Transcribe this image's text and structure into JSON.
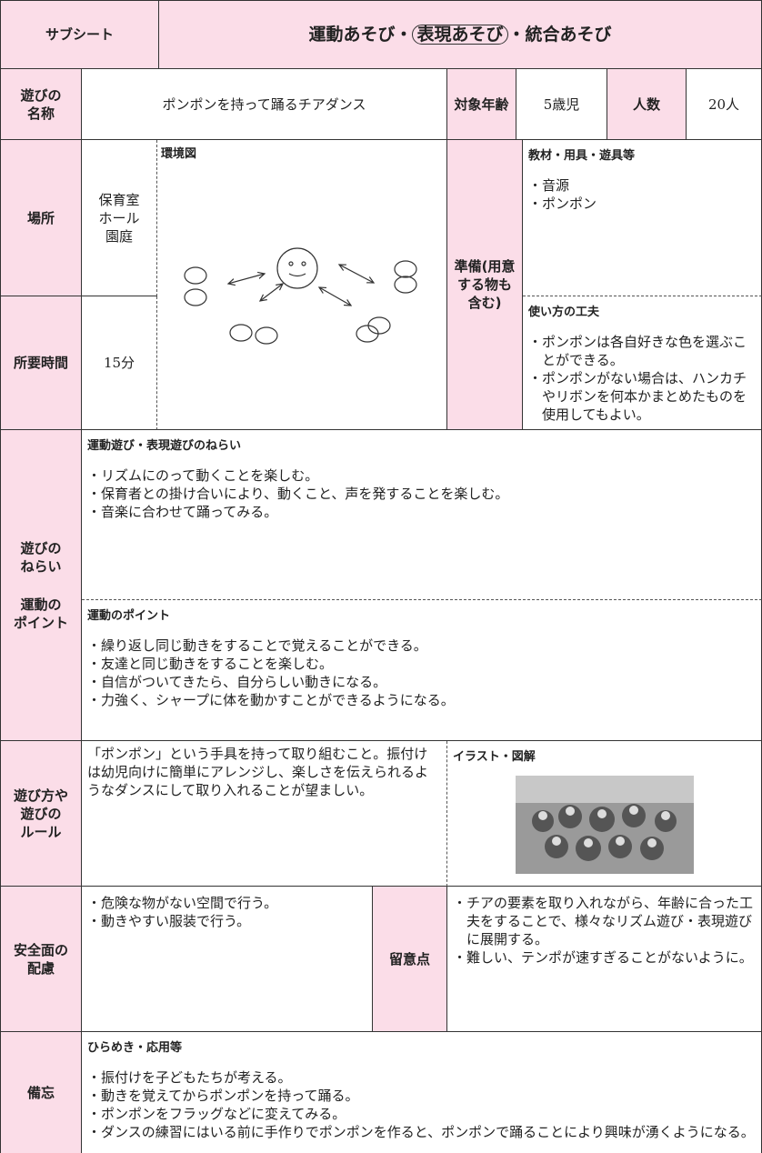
{
  "header": {
    "sheet": "サブシート",
    "title": [
      "運動あそび・",
      "表現あそび",
      "・統合あそび"
    ]
  },
  "name": {
    "label": [
      "遊びの",
      "名称"
    ],
    "value": "ポンポンを持って踊るチアダンス",
    "age_label": "対象年齢",
    "age": "5歳児",
    "count_label": "人数",
    "count": "20人"
  },
  "place": {
    "label": "場所",
    "value": [
      "保育室",
      "ホール",
      "園庭"
    ]
  },
  "time": {
    "label": "所要時間",
    "value": "15分"
  },
  "diagram": {
    "label": "環境図"
  },
  "prep": {
    "label": [
      "準備(用意",
      "する物も",
      "含む)"
    ],
    "materials_label": "教材・用具・遊具等",
    "materials": [
      "・音源",
      "・ポンポン"
    ],
    "usage_label": "使い方の工夫",
    "usage": [
      "・ポンポンは各自好きな色を選ぶことができる。",
      "・ポンポンがない場合は、ハンカチやリボンを何本かまとめたものを使用してもよい。"
    ]
  },
  "aims": {
    "label": [
      "遊びの",
      "ねらい"
    ],
    "point_label": [
      "運動の",
      "ポイント"
    ],
    "aims_title": "運動遊び・表現遊びのねらい",
    "aims_items": [
      "・リズムにのって動くことを楽しむ。",
      "・保育者との掛け合いにより、動くこと、声を発することを楽しむ。",
      "・音楽に合わせて踊ってみる。"
    ],
    "points_title": "運動のポイント",
    "points_items": [
      "・繰り返し同じ動きをすることで覚えることができる。",
      "・友達と同じ動きをすることを楽しむ。",
      "・自信がついてきたら、自分らしい動きになる。",
      "・力強く、シャープに体を動かすことができるようになる。"
    ]
  },
  "rules": {
    "label": [
      "遊び方や",
      "遊びの",
      "ルール"
    ],
    "text": "「ポンポン」という手具を持って取り組むこと。振付けは幼児向けに簡単にアレンジし、楽しさを伝えられるようなダンスにして取り入れることが望ましい。",
    "illust_label": "イラスト・図解"
  },
  "safety": {
    "label": [
      "安全面の",
      "配慮"
    ],
    "items": [
      "・危険な物がない空間で行う。",
      "・動きやすい服装で行う。"
    ],
    "note_label": "留意点",
    "notes": [
      "・チアの要素を取り入れながら、年齢に合った工夫をすることで、様々なリズム遊び・表現遊びに展開する。",
      "・難しい、テンポが速すぎることがないように。"
    ]
  },
  "memo": {
    "label": "備忘",
    "title": "ひらめき・応用等",
    "items": [
      "・振付けを子どもたちが考える。",
      "・動きを覚えてからポンポンを持って踊る。",
      "・ポンポンをフラッグなどに変えてみる。",
      "・ダンスの練習にはいる前に手作りでポンポンを作ると、ポンポンで踊ることにより興味が湧くようになる。"
    ]
  }
}
